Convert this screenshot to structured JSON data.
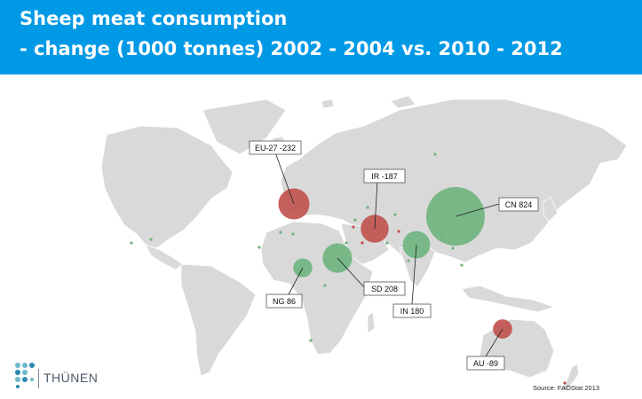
{
  "title": {
    "line1": "Sheep meat consumption",
    "line2": "- change (1000 tonnes) 2002 - 2004 vs. 2010 - 2012"
  },
  "colors": {
    "header_bg": "#0099e6",
    "land": "#d9d9d9",
    "increase": "#6db37c",
    "decrease": "#c0504d"
  },
  "map_data": {
    "metric": "Sheep meat consumption change (1000 tonnes)",
    "labeled": [
      {
        "code": "EU-27",
        "value": -232,
        "label": "EU-27  -232"
      },
      {
        "code": "IR",
        "value": -187,
        "label": "IR  -187"
      },
      {
        "code": "CN",
        "value": 824,
        "label": "CN  824"
      },
      {
        "code": "SD",
        "value": 208,
        "label": "SD  208"
      },
      {
        "code": "NG",
        "value": 86,
        "label": "NG  86"
      },
      {
        "code": "IN",
        "value": 180,
        "label": "IN  180"
      },
      {
        "code": "AU",
        "value": -89,
        "label": "AU  -89"
      }
    ]
  },
  "source": "Source:  FAOStat 2013",
  "logo": {
    "text": "THÜNEN"
  }
}
